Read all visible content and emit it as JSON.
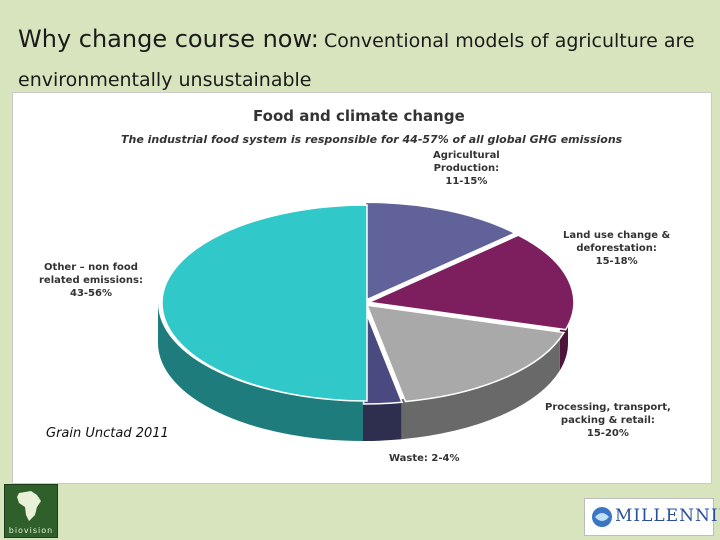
{
  "slide": {
    "title_lead": "Why change course now:",
    "title_rest": "Conventional models of agriculture are environmentally unsustainable",
    "source": "Grain Unctad 2011"
  },
  "logos": {
    "left_text": "biovision",
    "right_text": "MILLENNIUM"
  },
  "colors": {
    "background": "#d8e4bd",
    "agricultural": "#62629a",
    "landuse": "#7d1f5e",
    "processing": "#a9a9a9",
    "waste": "#4a4a80",
    "other": "#30c8c8"
  },
  "chart_data": {
    "type": "pie",
    "title": "Food and climate change",
    "subtitle": "The industrial food system is responsible for 44-57% of all global GHG emissions",
    "slices": [
      {
        "name": "Agricultural Production",
        "range": "11-15%",
        "value": 13,
        "label_lines": [
          "Agricultural",
          "Production:",
          "11-15%"
        ]
      },
      {
        "name": "Land use change & deforestation",
        "range": "15-18%",
        "value": 16.5,
        "label_lines": [
          "Land use change &",
          "deforestation:",
          "15-18%"
        ]
      },
      {
        "name": "Processing, transport, packing & retail",
        "range": "15-20%",
        "value": 17.5,
        "label_lines": [
          "Processing, transport,",
          "packing & retail:",
          "15-20%"
        ]
      },
      {
        "name": "Waste",
        "range": "2-4%",
        "value": 3,
        "label_lines": [
          "Waste: 2-4%"
        ]
      },
      {
        "name": "Other – non food related emissions",
        "range": "43-56%",
        "value": 50,
        "label_lines": [
          "Other – non food",
          "related emissions:",
          "43-56%"
        ]
      }
    ]
  }
}
